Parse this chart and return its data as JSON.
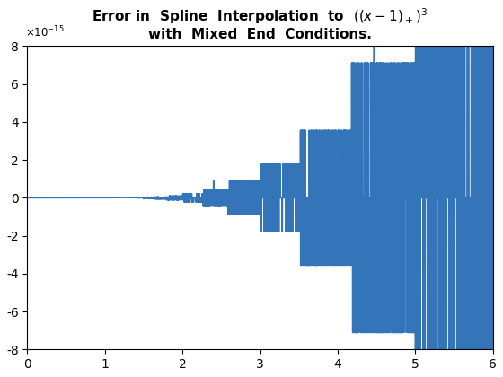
{
  "title_line1": "Error in  Spline  Interpolation  to  $((x-1)_+)^3$",
  "title_line2": "with  Mixed  End  Conditions.",
  "xlim": [
    0,
    6
  ],
  "ylim": [
    -8e-15,
    8e-15
  ],
  "xticks": [
    0,
    1,
    2,
    3,
    4,
    5,
    6
  ],
  "yticks": [
    -8e-15,
    -6e-15,
    -4e-15,
    -2e-15,
    0,
    2e-15,
    4e-15,
    6e-15,
    8e-15
  ],
  "line_color": "#3474b8",
  "line_width": 1.2,
  "background_color": "#ffffff"
}
